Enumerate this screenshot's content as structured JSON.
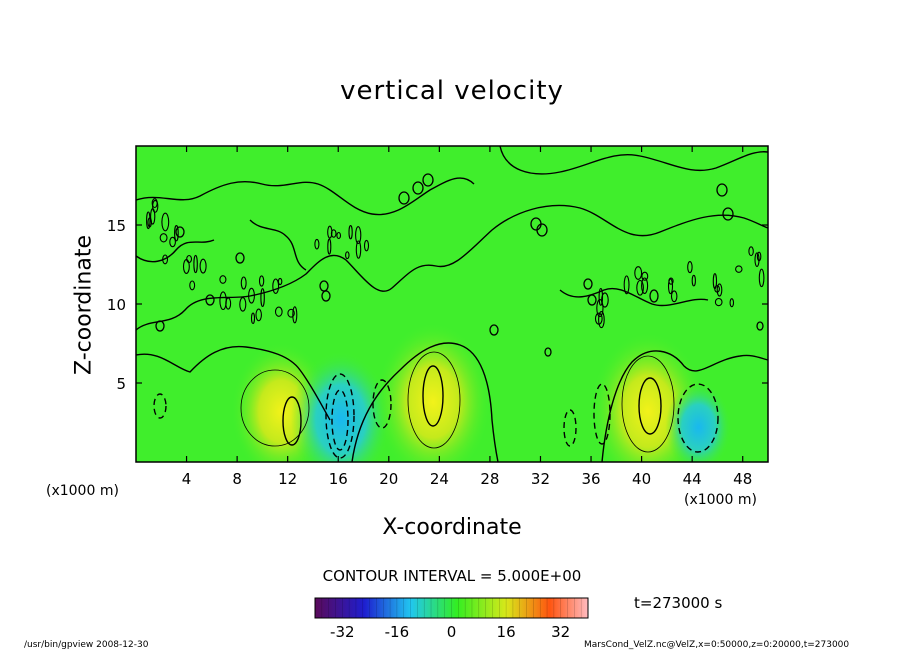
{
  "chart_data": {
    "type": "heatmap",
    "title": "vertical velocity",
    "xlabel": "X-coordinate",
    "ylabel": "Z-coordinate",
    "x_unit": "(x1000 m)",
    "xlim": [
      0,
      50
    ],
    "ylim": [
      0,
      20
    ],
    "x_ticks": [
      4,
      8,
      12,
      16,
      20,
      24,
      28,
      32,
      36,
      40,
      44,
      48
    ],
    "y_ticks": [
      5,
      10,
      15
    ],
    "contour_interval_label": "CONTOUR INTERVAL = 5.000E+00",
    "time_label": "t=273000 s",
    "colorbar": {
      "range": [
        -40,
        40
      ],
      "ticks": [
        -32,
        -16,
        0,
        16,
        32
      ],
      "colors": [
        "#5a0a5a",
        "#1e1ecf",
        "#21c6f0",
        "#33ee22",
        "#d8e81a",
        "#ff5511",
        "#ffbbc0"
      ]
    },
    "features": [
      {
        "x": 11.5,
        "z": 3.2,
        "peak": 15,
        "kind": "updraft"
      },
      {
        "x": 16.2,
        "z": 2.7,
        "peak": -15,
        "kind": "downdraft"
      },
      {
        "x": 23.5,
        "z": 3.8,
        "peak": 18,
        "kind": "updraft"
      },
      {
        "x": 40.5,
        "z": 3.2,
        "peak": 18,
        "kind": "updraft"
      },
      {
        "x": 44.5,
        "z": 2.2,
        "peak": -8,
        "kind": "downdraft"
      }
    ]
  },
  "footer": {
    "left": "/usr/bin/gpview  2008-12-30",
    "right": "MarsCond_VelZ.nc@VelZ,x=0:50000,z=0:20000,t=273000"
  }
}
